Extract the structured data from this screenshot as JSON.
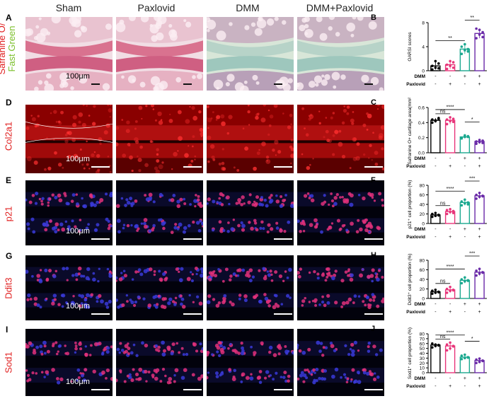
{
  "column_headers": [
    "Sham",
    "Paxlovid",
    "DMM",
    "DMM+Paxlovid"
  ],
  "panels": {
    "A": {
      "letter": "A",
      "label_line1": "Safranine O/",
      "label_line2": "Fast Green",
      "scale": "100μm"
    },
    "D": {
      "letter": "D",
      "label": "Col2a1",
      "scale": "100μm"
    },
    "E": {
      "letter": "E",
      "label": "p21",
      "scale": "100μm"
    },
    "G": {
      "letter": "G",
      "label": "Ddit3",
      "scale": "100μm"
    },
    "I": {
      "letter": "I",
      "label": "Sod1",
      "scale": "100μm"
    }
  },
  "group_table": {
    "row1_label": "DMM",
    "row1": [
      "-",
      "-",
      "+",
      "+"
    ],
    "row2_label": "Paxlovid",
    "row2": [
      "-",
      "+",
      "-",
      "+"
    ]
  },
  "colors": {
    "sham": "#000000",
    "paxlovid": "#e8357a",
    "dmm": "#1aa88f",
    "dmm_paxlovid": "#6a2aa8",
    "label_red": "#e02020",
    "label_green": "#7bbf2a"
  },
  "chart_data": [
    {
      "panel": "B",
      "type": "bar",
      "ylabel": "OARSI scores",
      "ylim": [
        0,
        8
      ],
      "yticks": [
        "0",
        "4",
        "8"
      ],
      "values": [
        0.8,
        1.0,
        3.6,
        6.2
      ],
      "points": [
        [
          0.2,
          0.5,
          1.2,
          0.8,
          1.6,
          0.4
        ],
        [
          0.3,
          0.8,
          1.4,
          1.0,
          1.6,
          0.5
        ],
        [
          2.8,
          3.4,
          3.6,
          4.0,
          4.4,
          3.2
        ],
        [
          5.4,
          6.0,
          6.4,
          7.0,
          6.8,
          5.6
        ]
      ],
      "sig": [
        {
          "from": 0,
          "to": 2,
          "label": "**"
        },
        {
          "from": 2,
          "to": 3,
          "label": "**"
        }
      ]
    },
    {
      "panel": "C",
      "type": "bar",
      "ylabel": "Safranine O+ cartilage area(mm²)",
      "ylim": [
        0,
        0.6
      ],
      "yticks": [
        "0.0",
        "0.2",
        "0.4",
        "0.6"
      ],
      "values": [
        0.43,
        0.43,
        0.21,
        0.15
      ],
      "points": [
        [
          0.4,
          0.42,
          0.45,
          0.44,
          0.43,
          0.46
        ],
        [
          0.38,
          0.42,
          0.45,
          0.44,
          0.47,
          0.41
        ],
        [
          0.19,
          0.21,
          0.22,
          0.2,
          0.23,
          0.21
        ],
        [
          0.12,
          0.14,
          0.16,
          0.15,
          0.17,
          0.13
        ]
      ],
      "sig": [
        {
          "from": 0,
          "to": 1,
          "label": "ns"
        },
        {
          "from": 0,
          "to": 2,
          "label": "****"
        },
        {
          "from": 2,
          "to": 3,
          "label": "*"
        }
      ]
    },
    {
      "panel": "F",
      "type": "bar",
      "ylabel": "p21⁺ cell proportion (%)",
      "ylim": [
        0,
        80
      ],
      "yticks": [
        "0",
        "20",
        "40",
        "60",
        "80"
      ],
      "values": [
        18,
        25,
        44,
        58
      ],
      "points": [
        [
          14,
          16,
          18,
          20,
          22,
          17
        ],
        [
          20,
          24,
          26,
          28,
          30,
          22
        ],
        [
          38,
          42,
          44,
          46,
          50,
          40
        ],
        [
          52,
          56,
          58,
          60,
          64,
          57
        ]
      ],
      "sig": [
        {
          "from": 0,
          "to": 1,
          "label": "ns"
        },
        {
          "from": 0,
          "to": 2,
          "label": "****"
        },
        {
          "from": 2,
          "to": 3,
          "label": "***"
        }
      ]
    },
    {
      "panel": "H",
      "type": "bar",
      "ylabel": "Ddit3⁺ cell proportion (%)",
      "ylim": [
        0,
        80
      ],
      "yticks": [
        "0",
        "20",
        "40",
        "60",
        "80"
      ],
      "values": [
        14,
        18,
        38,
        55
      ],
      "points": [
        [
          10,
          12,
          14,
          16,
          18,
          13
        ],
        [
          12,
          16,
          18,
          20,
          24,
          17
        ],
        [
          32,
          36,
          38,
          40,
          44,
          37
        ],
        [
          48,
          52,
          55,
          58,
          62,
          54
        ]
      ],
      "sig": [
        {
          "from": 0,
          "to": 1,
          "label": "ns"
        },
        {
          "from": 0,
          "to": 2,
          "label": "****"
        },
        {
          "from": 2,
          "to": 3,
          "label": "***"
        }
      ]
    },
    {
      "panel": "J",
      "type": "bar",
      "ylabel": "Sod1⁺ cell proportion (%)",
      "ylim": [
        0,
        80
      ],
      "yticks": [
        "0",
        "10",
        "20",
        "30",
        "40",
        "50",
        "60",
        "70",
        "80"
      ],
      "values": [
        57,
        55,
        32,
        25
      ],
      "points": [
        [
          52,
          55,
          57,
          60,
          58,
          56
        ],
        [
          46,
          50,
          54,
          58,
          62,
          55
        ],
        [
          28,
          30,
          32,
          35,
          37,
          31
        ],
        [
          20,
          22,
          25,
          27,
          29,
          24
        ]
      ],
      "sig": [
        {
          "from": 0,
          "to": 1,
          "label": "ns"
        },
        {
          "from": 0,
          "to": 2,
          "label": "****"
        },
        {
          "from": 2,
          "to": 3,
          "label": "*"
        }
      ]
    }
  ]
}
